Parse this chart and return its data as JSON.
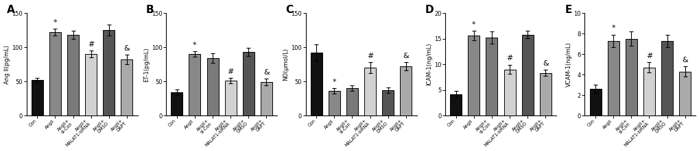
{
  "panels": [
    {
      "label": "A",
      "ylabel": "Ang II(pg/mL)",
      "ylim": [
        0,
        150
      ],
      "yticks": [
        0,
        50,
        100,
        150
      ],
      "values": [
        52,
        122,
        118,
        90,
        125,
        82
      ],
      "errors": [
        3,
        5,
        6,
        5,
        8,
        7
      ],
      "annotations": [
        "",
        "*",
        "",
        "#",
        "",
        "&"
      ]
    },
    {
      "label": "B",
      "ylabel": "ET-1(pg/mL)",
      "ylim": [
        0,
        150
      ],
      "yticks": [
        0,
        50,
        100,
        150
      ],
      "values": [
        34,
        90,
        84,
        51,
        93,
        49
      ],
      "errors": [
        4,
        4,
        7,
        4,
        6,
        5
      ],
      "annotations": [
        "",
        "*",
        "",
        "#",
        "",
        "&"
      ]
    },
    {
      "label": "C",
      "ylabel": "NO(μmol/L)",
      "ylim": [
        0,
        150
      ],
      "yticks": [
        0,
        50,
        100,
        150
      ],
      "values": [
        92,
        36,
        40,
        70,
        37,
        72
      ],
      "errors": [
        12,
        4,
        4,
        8,
        4,
        6
      ],
      "annotations": [
        "",
        "*",
        "",
        "#",
        "",
        "&"
      ]
    },
    {
      "label": "D",
      "ylabel": "ICAM-1(ng/mL)",
      "ylim": [
        0,
        20
      ],
      "yticks": [
        0,
        5,
        10,
        15,
        20
      ],
      "values": [
        4.2,
        15.6,
        15.2,
        9.0,
        15.8,
        8.3
      ],
      "errors": [
        0.6,
        0.9,
        1.2,
        0.9,
        0.7,
        0.6
      ],
      "annotations": [
        "",
        "*",
        "",
        "#",
        "",
        "&"
      ]
    },
    {
      "label": "E",
      "ylabel": "VCAM-1(ng/mL)",
      "ylim": [
        0,
        10
      ],
      "yticks": [
        0,
        2,
        4,
        6,
        8,
        10
      ],
      "values": [
        2.6,
        7.3,
        7.5,
        4.7,
        7.3,
        4.3
      ],
      "errors": [
        0.4,
        0.6,
        0.7,
        0.5,
        0.6,
        0.5
      ],
      "annotations": [
        "",
        "*",
        "",
        "#",
        "",
        "&"
      ]
    }
  ],
  "categories": [
    "Con",
    "AngII",
    "AngII+si-Con",
    "AngII+MALAT1-siRNA",
    "AngII+DMSO",
    "AngII+DAPT"
  ],
  "bar_colors": [
    "#111111",
    "#888888",
    "#7a7a7a",
    "#d2d2d2",
    "#555555",
    "#aaaaaa"
  ],
  "background_color": "#ffffff",
  "figure_width": 10.2,
  "figure_height": 2.21,
  "dpi": 100
}
